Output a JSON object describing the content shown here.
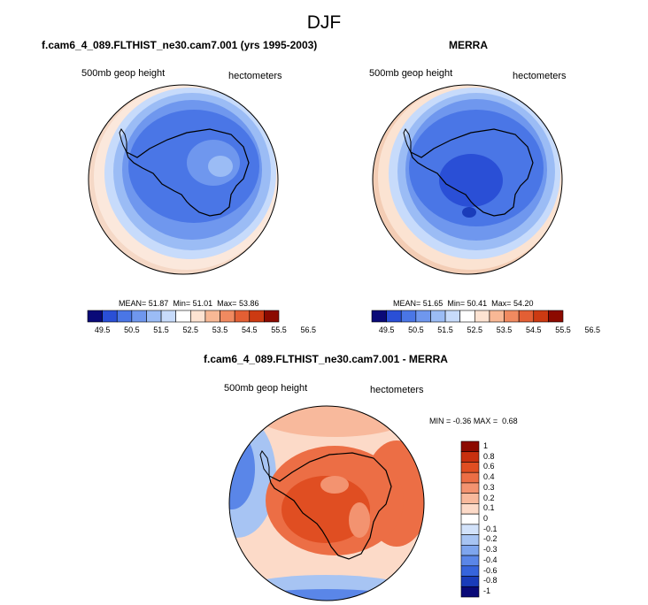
{
  "figure": {
    "title": "DJF",
    "panels": [
      {
        "title": "f.cam6_4_089.FLTHIST_ne30.cam7.001 (yrs 1995-2003)",
        "left_label": "500mb geop height",
        "right_label": "hectometers",
        "stats": {
          "mean_label": "MEAN=",
          "mean": "51.87",
          "min_label": "Min=",
          "min": "51.01",
          "max_label": "Max=",
          "max": "53.86"
        },
        "colorbar_ticks": [
          "49.5",
          "50.5",
          "51.5",
          "52.5",
          "53.5",
          "54.5",
          "55.5",
          "56.5"
        ]
      },
      {
        "title": "MERRA",
        "left_label": "500mb geop height",
        "right_label": "hectometers",
        "stats": {
          "mean_label": "MEAN=",
          "mean": "51.65",
          "min_label": "Min=",
          "min": "50.41",
          "max_label": "Max=",
          "max": "54.20"
        },
        "colorbar_ticks": [
          "49.5",
          "50.5",
          "51.5",
          "52.5",
          "53.5",
          "54.5",
          "55.5",
          "56.5"
        ]
      },
      {
        "title": "f.cam6_4_089.FLTHIST_ne30.cam7.001 - MERRA",
        "left_label": "500mb geop height",
        "right_label": "hectometers",
        "minmax": {
          "min_label": "MIN =",
          "min": "-0.36",
          "max_label": "MAX =",
          "max": "0.68"
        },
        "colorbar_ticks": [
          "1",
          "0.8",
          "0.6",
          "0.4",
          "0.3",
          "0.2",
          "0.1",
          "0",
          "-0.1",
          "-0.2",
          "-0.3",
          "-0.4",
          "-0.6",
          "-0.8",
          "-1"
        ]
      }
    ]
  },
  "colors": {
    "abs_scale": [
      "#0a0a78",
      "#2a4fd6",
      "#4a76e6",
      "#6f97ee",
      "#9bbcf5",
      "#c7dbfb",
      "#ffffff",
      "#fde3d2",
      "#f8b895",
      "#f08a60",
      "#e35f34",
      "#cc3a12",
      "#8c0a00"
    ],
    "diff_scale": [
      "#8c0a00",
      "#c8300f",
      "#e04e22",
      "#ec6e45",
      "#f39370",
      "#f8b99c",
      "#fcdac8",
      "#ffffff",
      "#d2e2fa",
      "#a7c4f3",
      "#7ea5ee",
      "#5a86e8",
      "#3664dc",
      "#1a3cba",
      "#0a0a78"
    ],
    "land_outline": "#000000"
  },
  "chart_data": [
    {
      "type": "heatmap",
      "projection": "south-polar-stereographic",
      "title": "f.cam6_4_089.FLTHIST_ne30.cam7.001 (yrs 1995-2003)",
      "variable": "500mb geop height",
      "units": "hectometers",
      "mean": 51.87,
      "min": 51.01,
      "max": 53.86,
      "levels": [
        49.5,
        50,
        50.5,
        51,
        51.5,
        52,
        52.5,
        53,
        53.5,
        54,
        54.5,
        55,
        55.5,
        56,
        56.5
      ],
      "colorbar": "horizontal-bottom"
    },
    {
      "type": "heatmap",
      "projection": "south-polar-stereographic",
      "title": "MERRA",
      "variable": "500mb geop height",
      "units": "hectometers",
      "mean": 51.65,
      "min": 50.41,
      "max": 54.2,
      "levels": [
        49.5,
        50,
        50.5,
        51,
        51.5,
        52,
        52.5,
        53,
        53.5,
        54,
        54.5,
        55,
        55.5,
        56,
        56.5
      ],
      "colorbar": "horizontal-bottom"
    },
    {
      "type": "heatmap",
      "projection": "south-polar-stereographic",
      "title": "f.cam6_4_089.FLTHIST_ne30.cam7.001 - MERRA",
      "variable": "500mb geop height",
      "units": "hectometers",
      "min": -0.36,
      "max": 0.68,
      "levels": [
        -1,
        -0.8,
        -0.6,
        -0.4,
        -0.3,
        -0.2,
        -0.1,
        0,
        0.1,
        0.2,
        0.3,
        0.4,
        0.6,
        0.8,
        1
      ],
      "colorbar": "vertical-right"
    }
  ]
}
